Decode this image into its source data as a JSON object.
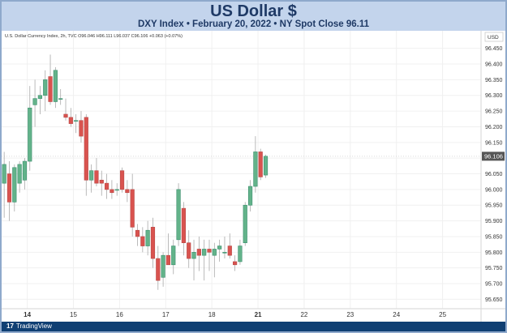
{
  "header": {
    "title": "US Dollar $",
    "subtitle": "DXY Index • February 20, 2022 • NY Spot Close 96.11"
  },
  "legend": {
    "text": "U.S. Dollar Currency Index, 2h, TVC  O96.046  H96.111  L96.037  C96.106  +0.063 (+0.07%)"
  },
  "footer": {
    "logo_mark": "17",
    "logo_text": "TradingView"
  },
  "colors": {
    "up": "#26a69a",
    "up_body": "#5fb58a",
    "down": "#ef5350",
    "down_body": "#d9534f",
    "price_tag": "#555555",
    "grid": "#eeeeee"
  },
  "chart_data": {
    "type": "candlestick",
    "currency_label": "USD",
    "last_price_label": "96.106",
    "y_ticks": [
      "96.450",
      "96.400",
      "96.350",
      "96.300",
      "96.250",
      "96.200",
      "96.150",
      "96.100",
      "96.050",
      "96.000",
      "95.950",
      "95.900",
      "95.850",
      "95.800",
      "95.750",
      "95.700",
      "95.650"
    ],
    "ylim": [
      95.62,
      96.475
    ],
    "x_ticks": [
      {
        "label": "14",
        "index": 4.5
      },
      {
        "label": "15",
        "index": 13.5
      },
      {
        "label": "16",
        "index": 22.5
      },
      {
        "label": "17",
        "index": 31.5
      },
      {
        "label": "18",
        "index": 40.5
      },
      {
        "label": "21",
        "index": 49.5
      },
      {
        "label": "22",
        "index": 58.5
      },
      {
        "label": "23",
        "index": 67.5
      },
      {
        "label": "24",
        "index": 76.5
      },
      {
        "label": "25",
        "index": 85.5
      }
    ],
    "x_range": [
      -0.5,
      93
    ],
    "candles": [
      {
        "o": 96.02,
        "h": 96.12,
        "l": 95.91,
        "c": 96.08
      },
      {
        "o": 96.05,
        "h": 96.09,
        "l": 95.9,
        "c": 95.96
      },
      {
        "o": 95.96,
        "h": 96.08,
        "l": 95.93,
        "c": 96.07
      },
      {
        "o": 96.02,
        "h": 96.09,
        "l": 95.99,
        "c": 96.08
      },
      {
        "o": 96.03,
        "h": 96.1,
        "l": 96.0,
        "c": 96.09
      },
      {
        "o": 96.09,
        "h": 96.33,
        "l": 96.06,
        "c": 96.26
      },
      {
        "o": 96.27,
        "h": 96.35,
        "l": 96.2,
        "c": 96.29
      },
      {
        "o": 96.29,
        "h": 96.33,
        "l": 96.24,
        "c": 96.3
      },
      {
        "o": 96.3,
        "h": 96.38,
        "l": 96.25,
        "c": 96.35
      },
      {
        "o": 96.36,
        "h": 96.43,
        "l": 96.27,
        "c": 96.28
      },
      {
        "o": 96.28,
        "h": 96.39,
        "l": 96.26,
        "c": 96.38
      },
      {
        "o": 96.29,
        "h": 96.32,
        "l": 96.27,
        "c": 96.29
      },
      {
        "o": 96.24,
        "h": 96.29,
        "l": 96.22,
        "c": 96.23
      },
      {
        "o": 96.23,
        "h": 96.26,
        "l": 96.2,
        "c": 96.21
      },
      {
        "o": 96.22,
        "h": 96.24,
        "l": 96.18,
        "c": 96.22
      },
      {
        "o": 96.22,
        "h": 96.25,
        "l": 96.15,
        "c": 96.17
      },
      {
        "o": 96.23,
        "h": 96.24,
        "l": 95.98,
        "c": 96.03
      },
      {
        "o": 96.03,
        "h": 96.08,
        "l": 95.99,
        "c": 96.06
      },
      {
        "o": 96.06,
        "h": 96.1,
        "l": 96.01,
        "c": 96.02
      },
      {
        "o": 96.03,
        "h": 96.06,
        "l": 95.98,
        "c": 96.02
      },
      {
        "o": 96.02,
        "h": 96.05,
        "l": 95.97,
        "c": 96.0
      },
      {
        "o": 96.0,
        "h": 96.03,
        "l": 95.97,
        "c": 95.99
      },
      {
        "o": 96.0,
        "h": 96.02,
        "l": 95.98,
        "c": 96.0
      },
      {
        "o": 96.06,
        "h": 96.07,
        "l": 95.99,
        "c": 96.0
      },
      {
        "o": 96.0,
        "h": 96.03,
        "l": 95.96,
        "c": 95.99
      },
      {
        "o": 96.0,
        "h": 96.05,
        "l": 95.85,
        "c": 95.88
      },
      {
        "o": 95.87,
        "h": 95.89,
        "l": 95.82,
        "c": 95.85
      },
      {
        "o": 95.85,
        "h": 95.88,
        "l": 95.8,
        "c": 95.82
      },
      {
        "o": 95.82,
        "h": 95.9,
        "l": 95.79,
        "c": 95.87
      },
      {
        "o": 95.88,
        "h": 95.91,
        "l": 95.75,
        "c": 95.78
      },
      {
        "o": 95.78,
        "h": 95.82,
        "l": 95.68,
        "c": 95.71
      },
      {
        "o": 95.72,
        "h": 95.8,
        "l": 95.69,
        "c": 95.79
      },
      {
        "o": 95.79,
        "h": 95.86,
        "l": 95.76,
        "c": 95.76
      },
      {
        "o": 95.76,
        "h": 95.84,
        "l": 95.73,
        "c": 95.82
      },
      {
        "o": 95.84,
        "h": 96.02,
        "l": 95.82,
        "c": 96.0
      },
      {
        "o": 95.94,
        "h": 95.96,
        "l": 95.79,
        "c": 95.83
      },
      {
        "o": 95.83,
        "h": 95.87,
        "l": 95.75,
        "c": 95.78
      },
      {
        "o": 95.78,
        "h": 95.84,
        "l": 95.71,
        "c": 95.8
      },
      {
        "o": 95.81,
        "h": 95.85,
        "l": 95.74,
        "c": 95.79
      },
      {
        "o": 95.79,
        "h": 95.84,
        "l": 95.71,
        "c": 95.81
      },
      {
        "o": 95.81,
        "h": 95.84,
        "l": 95.74,
        "c": 95.8
      },
      {
        "o": 95.79,
        "h": 95.83,
        "l": 95.72,
        "c": 95.81
      },
      {
        "o": 95.81,
        "h": 95.84,
        "l": 95.77,
        "c": 95.82
      },
      {
        "o": 95.8,
        "h": 95.85,
        "l": 95.78,
        "c": 95.8
      },
      {
        "o": 95.82,
        "h": 95.86,
        "l": 95.78,
        "c": 95.79
      },
      {
        "o": 95.77,
        "h": 95.79,
        "l": 95.74,
        "c": 95.76
      },
      {
        "o": 95.77,
        "h": 95.84,
        "l": 95.76,
        "c": 95.82
      },
      {
        "o": 95.83,
        "h": 95.96,
        "l": 95.82,
        "c": 95.95
      },
      {
        "o": 95.95,
        "h": 96.03,
        "l": 95.93,
        "c": 96.01
      },
      {
        "o": 96.01,
        "h": 96.17,
        "l": 95.99,
        "c": 96.12
      },
      {
        "o": 96.12,
        "h": 96.13,
        "l": 96.03,
        "c": 96.04
      },
      {
        "o": 96.046,
        "h": 96.111,
        "l": 96.037,
        "c": 96.106
      }
    ]
  }
}
